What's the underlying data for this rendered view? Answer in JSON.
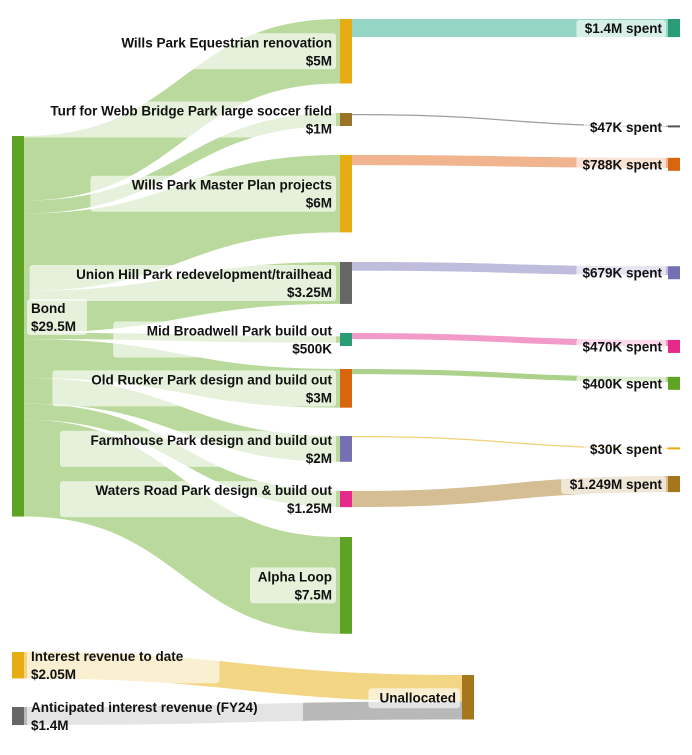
{
  "chart_data": {
    "type": "sankey",
    "source": {
      "name": "Bond",
      "value": "$29.5M",
      "color": "#5fa324"
    },
    "projects": [
      {
        "name": "Wills Park Equestrian renovation",
        "amount": "$5M",
        "value": 5,
        "color": "#e6ac12",
        "spent_label": "$1.4M spent",
        "spent_value": 1.4,
        "spent_color": "#2a9d78",
        "flow_color": "#8ed3c0"
      },
      {
        "name": "Turf for Webb Bridge Park large soccer field",
        "amount": "$1M",
        "value": 1,
        "color": "#9c7427",
        "spent_label": "$47K spent",
        "spent_value": 0.047,
        "spent_color": "#555555",
        "flow_color": "#999999"
      },
      {
        "name": "Wills Park Master Plan projects",
        "amount": "$6M",
        "value": 6,
        "color": "#e6ac12",
        "spent_label": "$788K spent",
        "spent_value": 0.788,
        "spent_color": "#d8660f",
        "flow_color": "#efb088"
      },
      {
        "name": "Union Hill Park redevelopment/trailhead",
        "amount": "$3.25M",
        "value": 3.25,
        "color": "#666666",
        "spent_label": "$679K spent",
        "spent_value": 0.679,
        "spent_color": "#7570b3",
        "flow_color": "#bdb8db"
      },
      {
        "name": "Mid Broadwell Park build out",
        "amount": "$500K",
        "value": 0.5,
        "color": "#2a9d78",
        "spent_label": "$470K spent",
        "spent_value": 0.47,
        "spent_color": "#e7298a",
        "flow_color": "#f196c6"
      },
      {
        "name": "Old Rucker Park design and build out",
        "amount": "$3M",
        "value": 3,
        "color": "#d8660f",
        "spent_label": "$400K spent",
        "spent_value": 0.4,
        "spent_color": "#5fa324",
        "flow_color": "#a6cf85"
      },
      {
        "name": "Farmhouse Park design and build out",
        "amount": "$2M",
        "value": 2,
        "color": "#7570b3",
        "spent_label": "$30K spent",
        "spent_value": 0.03,
        "spent_color": "#e6ac12",
        "flow_color": "#f0cc6e"
      },
      {
        "name": "Waters Road Park design & build out",
        "amount": "$1.25M",
        "value": 1.25,
        "color": "#e7298a",
        "spent_label": "$1.249M spent",
        "spent_value": 1.249,
        "spent_color": "#a6761d",
        "flow_color": "#d3ba8e"
      },
      {
        "name": "Alpha Loop",
        "amount": "$7.5M",
        "value": 7.5,
        "color": "#5fa324",
        "spent_label": "",
        "spent_value": 0,
        "spent_color": "",
        "flow_color": ""
      }
    ],
    "interest_sources": [
      {
        "name": "Interest revenue to date",
        "amount": "$2.05M",
        "value": 2.05,
        "color": "#e6ac12",
        "flow_color": "#f2d684"
      },
      {
        "name": "Anticipated interest revenue (FY24)",
        "amount": "$1.4M",
        "value": 1.4,
        "color": "#666666",
        "flow_color": "#b8b8b8"
      }
    ],
    "unallocated": {
      "name": "Unallocated",
      "color": "#a6761d"
    },
    "bond_flow_color": "#b6d798"
  }
}
